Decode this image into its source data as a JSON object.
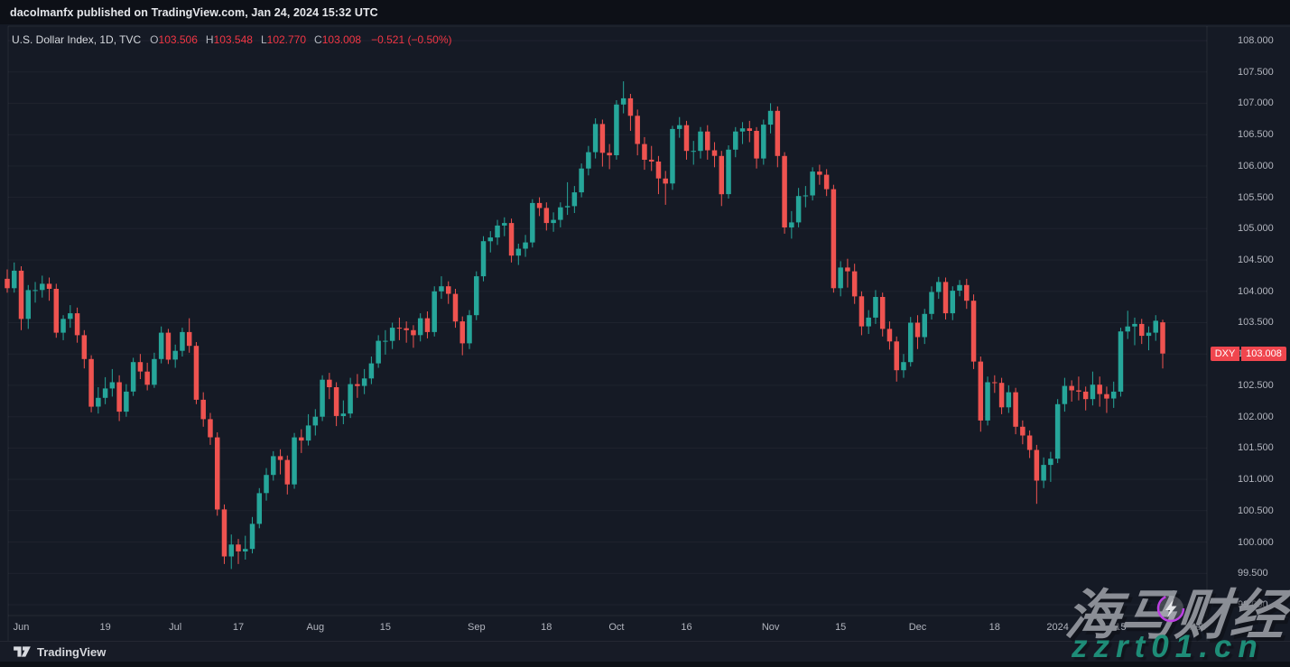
{
  "share_bar": {
    "text": "dacolmanfx published on TradingView.com, Jan 24, 2024 15:32 UTC"
  },
  "legend": {
    "symbol_line": "U.S. Dollar Index, 1D, TVC",
    "ohlc": {
      "o_label": "O",
      "o": "103.506",
      "h_label": "H",
      "h": "103.548",
      "l_label": "L",
      "l": "102.770",
      "c_label": "C",
      "c": "103.008"
    },
    "change": "−0.521 (−0.50%)"
  },
  "price_axis": {
    "labels": [
      "108.000",
      "107.500",
      "107.000",
      "106.500",
      "106.000",
      "105.500",
      "105.000",
      "104.500",
      "104.000",
      "103.500",
      "103.000",
      "102.500",
      "102.000",
      "101.500",
      "101.000",
      "100.500",
      "100.000",
      "99.500",
      "99.000"
    ],
    "tag": {
      "symbol": "DXY",
      "price": "103.008"
    }
  },
  "time_axis": {
    "ticks": [
      {
        "label": "Jun",
        "i": 2
      },
      {
        "label": "19",
        "i": 14
      },
      {
        "label": "Jul",
        "i": 24
      },
      {
        "label": "17",
        "i": 33
      },
      {
        "label": "Aug",
        "i": 44
      },
      {
        "label": "15",
        "i": 54
      },
      {
        "label": "Sep",
        "i": 67
      },
      {
        "label": "18",
        "i": 77
      },
      {
        "label": "Oct",
        "i": 87
      },
      {
        "label": "16",
        "i": 97
      },
      {
        "label": "Nov",
        "i": 109
      },
      {
        "label": "15",
        "i": 119
      },
      {
        "label": "Dec",
        "i": 130
      },
      {
        "label": "18",
        "i": 141
      },
      {
        "label": "2024",
        "i": 150
      },
      {
        "label": "15",
        "i": 159
      },
      {
        "label": "Feb",
        "i": 170
      }
    ]
  },
  "attribution": {
    "brand": "TradingView"
  },
  "watermark": {
    "title": "海马财经",
    "site": "zzrt01.cn"
  },
  "colors": {
    "up": "#26a69a",
    "down": "#ef5350",
    "tag_red": "#f0464e",
    "background": "#151a25",
    "grid": "rgba(255,255,255,0.045)",
    "border": "rgba(255,255,255,0.07)",
    "axis_text": "#b2b5be",
    "legend_red": "#f23645"
  },
  "chart_data": {
    "type": "candlestick",
    "title": "U.S. Dollar Index",
    "interval": "1D",
    "exchange": "TVC",
    "last": {
      "open": 103.506,
      "high": 103.548,
      "low": 102.77,
      "close": 103.008,
      "change": -0.521,
      "change_pct": -0.5
    },
    "y_axis_range": [
      98.85,
      108.25
    ],
    "grid": "horizontal-faint",
    "candles_format": [
      "open",
      "high",
      "low",
      "close"
    ],
    "candles": [
      [
        104.2,
        104.35,
        103.98,
        104.05
      ],
      [
        104.05,
        104.46,
        103.98,
        104.33
      ],
      [
        104.33,
        104.4,
        103.38,
        103.56
      ],
      [
        103.56,
        104.1,
        103.4,
        104.02
      ],
      [
        104.02,
        104.15,
        103.82,
        104.02
      ],
      [
        104.02,
        104.25,
        103.9,
        104.12
      ],
      [
        104.12,
        104.22,
        103.85,
        104.04
      ],
      [
        104.04,
        104.12,
        103.26,
        103.34
      ],
      [
        103.34,
        103.62,
        103.22,
        103.56
      ],
      [
        103.56,
        103.78,
        103.42,
        103.65
      ],
      [
        103.65,
        103.74,
        103.18,
        103.3
      ],
      [
        103.3,
        103.38,
        102.77,
        102.92
      ],
      [
        102.92,
        102.98,
        102.07,
        102.16
      ],
      [
        102.16,
        102.47,
        102.05,
        102.3
      ],
      [
        102.3,
        102.63,
        102.2,
        102.45
      ],
      [
        102.45,
        102.76,
        102.32,
        102.55
      ],
      [
        102.55,
        102.66,
        101.93,
        102.08
      ],
      [
        102.08,
        102.52,
        102.0,
        102.4
      ],
      [
        102.4,
        102.94,
        102.33,
        102.87
      ],
      [
        102.87,
        103.0,
        102.6,
        102.72
      ],
      [
        102.72,
        102.86,
        102.42,
        102.51
      ],
      [
        102.51,
        103.02,
        102.46,
        102.92
      ],
      [
        102.92,
        103.44,
        102.85,
        103.34
      ],
      [
        103.34,
        103.4,
        102.84,
        102.91
      ],
      [
        102.91,
        103.15,
        102.78,
        103.05
      ],
      [
        103.05,
        103.42,
        102.96,
        103.35
      ],
      [
        103.35,
        103.57,
        103.02,
        103.13
      ],
      [
        103.13,
        103.19,
        102.2,
        102.27
      ],
      [
        102.27,
        102.39,
        101.84,
        101.96
      ],
      [
        101.96,
        102.06,
        101.55,
        101.67
      ],
      [
        101.67,
        101.75,
        100.42,
        100.52
      ],
      [
        100.52,
        100.6,
        99.65,
        99.77
      ],
      [
        99.77,
        100.12,
        99.57,
        99.96
      ],
      [
        99.96,
        100.05,
        99.65,
        99.85
      ],
      [
        99.85,
        100.1,
        99.72,
        99.89
      ],
      [
        99.89,
        100.4,
        99.82,
        100.29
      ],
      [
        100.29,
        100.86,
        100.22,
        100.78
      ],
      [
        100.78,
        101.18,
        100.66,
        101.07
      ],
      [
        101.07,
        101.45,
        100.98,
        101.37
      ],
      [
        101.37,
        101.48,
        101.08,
        101.31
      ],
      [
        101.31,
        101.38,
        100.76,
        100.92
      ],
      [
        100.92,
        101.74,
        100.85,
        101.67
      ],
      [
        101.67,
        101.8,
        101.42,
        101.62
      ],
      [
        101.62,
        102.04,
        101.54,
        101.86
      ],
      [
        101.86,
        102.12,
        101.7,
        102.0
      ],
      [
        102.0,
        102.66,
        101.93,
        102.59
      ],
      [
        102.59,
        102.7,
        102.28,
        102.47
      ],
      [
        102.47,
        102.55,
        101.85,
        102.01
      ],
      [
        102.01,
        102.26,
        101.88,
        102.05
      ],
      [
        102.05,
        102.62,
        101.98,
        102.52
      ],
      [
        102.52,
        102.68,
        102.3,
        102.49
      ],
      [
        102.49,
        102.76,
        102.36,
        102.61
      ],
      [
        102.61,
        102.96,
        102.52,
        102.85
      ],
      [
        102.85,
        103.3,
        102.78,
        103.21
      ],
      [
        103.21,
        103.38,
        102.99,
        103.21
      ],
      [
        103.21,
        103.5,
        103.08,
        103.42
      ],
      [
        103.42,
        103.58,
        103.22,
        103.41
      ],
      [
        103.41,
        103.52,
        103.18,
        103.38
      ],
      [
        103.38,
        103.46,
        103.1,
        103.3
      ],
      [
        103.3,
        103.65,
        103.2,
        103.57
      ],
      [
        103.57,
        103.68,
        103.25,
        103.35
      ],
      [
        103.35,
        104.08,
        103.28,
        104.0
      ],
      [
        104.0,
        104.24,
        103.88,
        104.08
      ],
      [
        104.08,
        104.16,
        103.8,
        103.96
      ],
      [
        103.96,
        104.04,
        103.42,
        103.52
      ],
      [
        103.52,
        103.6,
        102.98,
        103.17
      ],
      [
        103.17,
        103.7,
        103.08,
        103.62
      ],
      [
        103.62,
        104.32,
        103.54,
        104.24
      ],
      [
        104.24,
        104.88,
        104.16,
        104.8
      ],
      [
        104.8,
        104.96,
        104.62,
        104.86
      ],
      [
        104.86,
        105.14,
        104.74,
        105.05
      ],
      [
        105.05,
        105.18,
        104.88,
        105.09
      ],
      [
        105.09,
        105.16,
        104.46,
        104.57
      ],
      [
        104.57,
        104.76,
        104.42,
        104.68
      ],
      [
        104.68,
        104.9,
        104.55,
        104.78
      ],
      [
        104.78,
        105.47,
        104.7,
        105.41
      ],
      [
        105.41,
        105.5,
        105.2,
        105.33
      ],
      [
        105.33,
        105.42,
        104.97,
        105.09
      ],
      [
        105.09,
        105.26,
        104.95,
        105.14
      ],
      [
        105.14,
        105.42,
        105.02,
        105.34
      ],
      [
        105.34,
        105.74,
        105.22,
        105.36
      ],
      [
        105.36,
        105.68,
        105.25,
        105.58
      ],
      [
        105.58,
        106.04,
        105.5,
        105.96
      ],
      [
        105.96,
        106.32,
        105.85,
        106.22
      ],
      [
        106.22,
        106.76,
        106.12,
        106.67
      ],
      [
        106.67,
        106.74,
        105.99,
        106.21
      ],
      [
        106.21,
        106.35,
        105.95,
        106.17
      ],
      [
        106.17,
        107.05,
        106.1,
        106.98
      ],
      [
        106.98,
        107.35,
        106.84,
        107.08
      ],
      [
        107.08,
        107.15,
        106.56,
        106.8
      ],
      [
        106.8,
        106.9,
        106.17,
        106.35
      ],
      [
        106.35,
        106.46,
        105.94,
        106.1
      ],
      [
        106.1,
        106.32,
        105.92,
        106.07
      ],
      [
        106.07,
        106.16,
        105.55,
        105.8
      ],
      [
        105.8,
        105.92,
        105.38,
        105.72
      ],
      [
        105.72,
        106.64,
        105.62,
        106.59
      ],
      [
        106.59,
        106.78,
        106.45,
        106.65
      ],
      [
        106.65,
        106.72,
        106.1,
        106.24
      ],
      [
        106.24,
        106.4,
        106.02,
        106.24
      ],
      [
        106.24,
        106.62,
        106.12,
        106.55
      ],
      [
        106.55,
        106.65,
        106.1,
        106.25
      ],
      [
        106.25,
        106.38,
        105.98,
        106.16
      ],
      [
        106.16,
        106.24,
        105.36,
        105.55
      ],
      [
        105.55,
        106.33,
        105.48,
        106.26
      ],
      [
        106.26,
        106.62,
        106.14,
        106.55
      ],
      [
        106.55,
        106.7,
        106.35,
        106.6
      ],
      [
        106.6,
        106.72,
        106.38,
        106.56
      ],
      [
        106.56,
        106.62,
        105.96,
        106.12
      ],
      [
        106.12,
        106.74,
        106.02,
        106.66
      ],
      [
        106.66,
        107.0,
        106.52,
        106.88
      ],
      [
        106.88,
        106.95,
        105.98,
        106.16
      ],
      [
        106.16,
        106.22,
        104.92,
        105.02
      ],
      [
        105.02,
        105.28,
        104.84,
        105.1
      ],
      [
        105.1,
        105.65,
        105.02,
        105.52
      ],
      [
        105.52,
        105.68,
        105.34,
        105.53
      ],
      [
        105.53,
        105.98,
        105.45,
        105.91
      ],
      [
        105.91,
        106.02,
        105.7,
        105.86
      ],
      [
        105.86,
        105.95,
        105.52,
        105.63
      ],
      [
        105.63,
        105.7,
        103.98,
        104.05
      ],
      [
        104.05,
        104.48,
        103.92,
        104.38
      ],
      [
        104.38,
        104.52,
        104.06,
        104.32
      ],
      [
        104.32,
        104.44,
        103.8,
        103.92
      ],
      [
        103.92,
        104.0,
        103.3,
        103.44
      ],
      [
        103.44,
        103.7,
        103.32,
        103.58
      ],
      [
        103.58,
        104.02,
        103.48,
        103.91
      ],
      [
        103.91,
        103.98,
        103.28,
        103.4
      ],
      [
        103.4,
        103.52,
        103.07,
        103.2
      ],
      [
        103.2,
        103.28,
        102.56,
        102.74
      ],
      [
        102.74,
        103.0,
        102.62,
        102.87
      ],
      [
        102.87,
        103.59,
        102.8,
        103.5
      ],
      [
        103.5,
        103.62,
        103.08,
        103.27
      ],
      [
        103.27,
        103.72,
        103.16,
        103.64
      ],
      [
        103.64,
        104.08,
        103.55,
        103.99
      ],
      [
        103.99,
        104.23,
        103.88,
        104.15
      ],
      [
        104.15,
        104.22,
        103.55,
        103.65
      ],
      [
        103.65,
        104.08,
        103.54,
        104.01
      ],
      [
        104.01,
        104.18,
        103.92,
        104.1
      ],
      [
        104.1,
        104.2,
        103.72,
        103.85
      ],
      [
        103.85,
        103.95,
        102.76,
        102.88
      ],
      [
        102.88,
        102.96,
        101.76,
        101.94
      ],
      [
        101.94,
        102.64,
        101.86,
        102.55
      ],
      [
        102.55,
        102.66,
        102.38,
        102.54
      ],
      [
        102.54,
        102.62,
        102.04,
        102.15
      ],
      [
        102.15,
        102.5,
        102.06,
        102.39
      ],
      [
        102.39,
        102.46,
        101.72,
        101.84
      ],
      [
        101.84,
        101.94,
        101.56,
        101.7
      ],
      [
        101.7,
        101.78,
        101.34,
        101.47
      ],
      [
        101.47,
        101.55,
        100.61,
        100.98
      ],
      [
        100.98,
        101.35,
        100.86,
        101.23
      ],
      [
        101.23,
        101.44,
        100.96,
        101.33
      ],
      [
        101.33,
        102.28,
        101.26,
        102.2
      ],
      [
        102.2,
        102.62,
        102.08,
        102.49
      ],
      [
        102.49,
        102.58,
        102.24,
        102.42
      ],
      [
        102.42,
        102.64,
        102.26,
        102.4
      ],
      [
        102.4,
        102.48,
        102.1,
        102.28
      ],
      [
        102.28,
        102.72,
        102.18,
        102.51
      ],
      [
        102.51,
        102.64,
        102.16,
        102.36
      ],
      [
        102.36,
        102.48,
        102.06,
        102.29
      ],
      [
        102.29,
        102.56,
        102.14,
        102.4
      ],
      [
        102.4,
        103.42,
        102.32,
        103.36
      ],
      [
        103.36,
        103.69,
        103.24,
        103.44
      ],
      [
        103.44,
        103.58,
        103.14,
        103.48
      ],
      [
        103.48,
        103.56,
        103.16,
        103.29
      ],
      [
        103.29,
        103.44,
        103.06,
        103.34
      ],
      [
        103.34,
        103.62,
        103.21,
        103.53
      ],
      [
        103.506,
        103.548,
        102.77,
        103.008
      ]
    ]
  }
}
